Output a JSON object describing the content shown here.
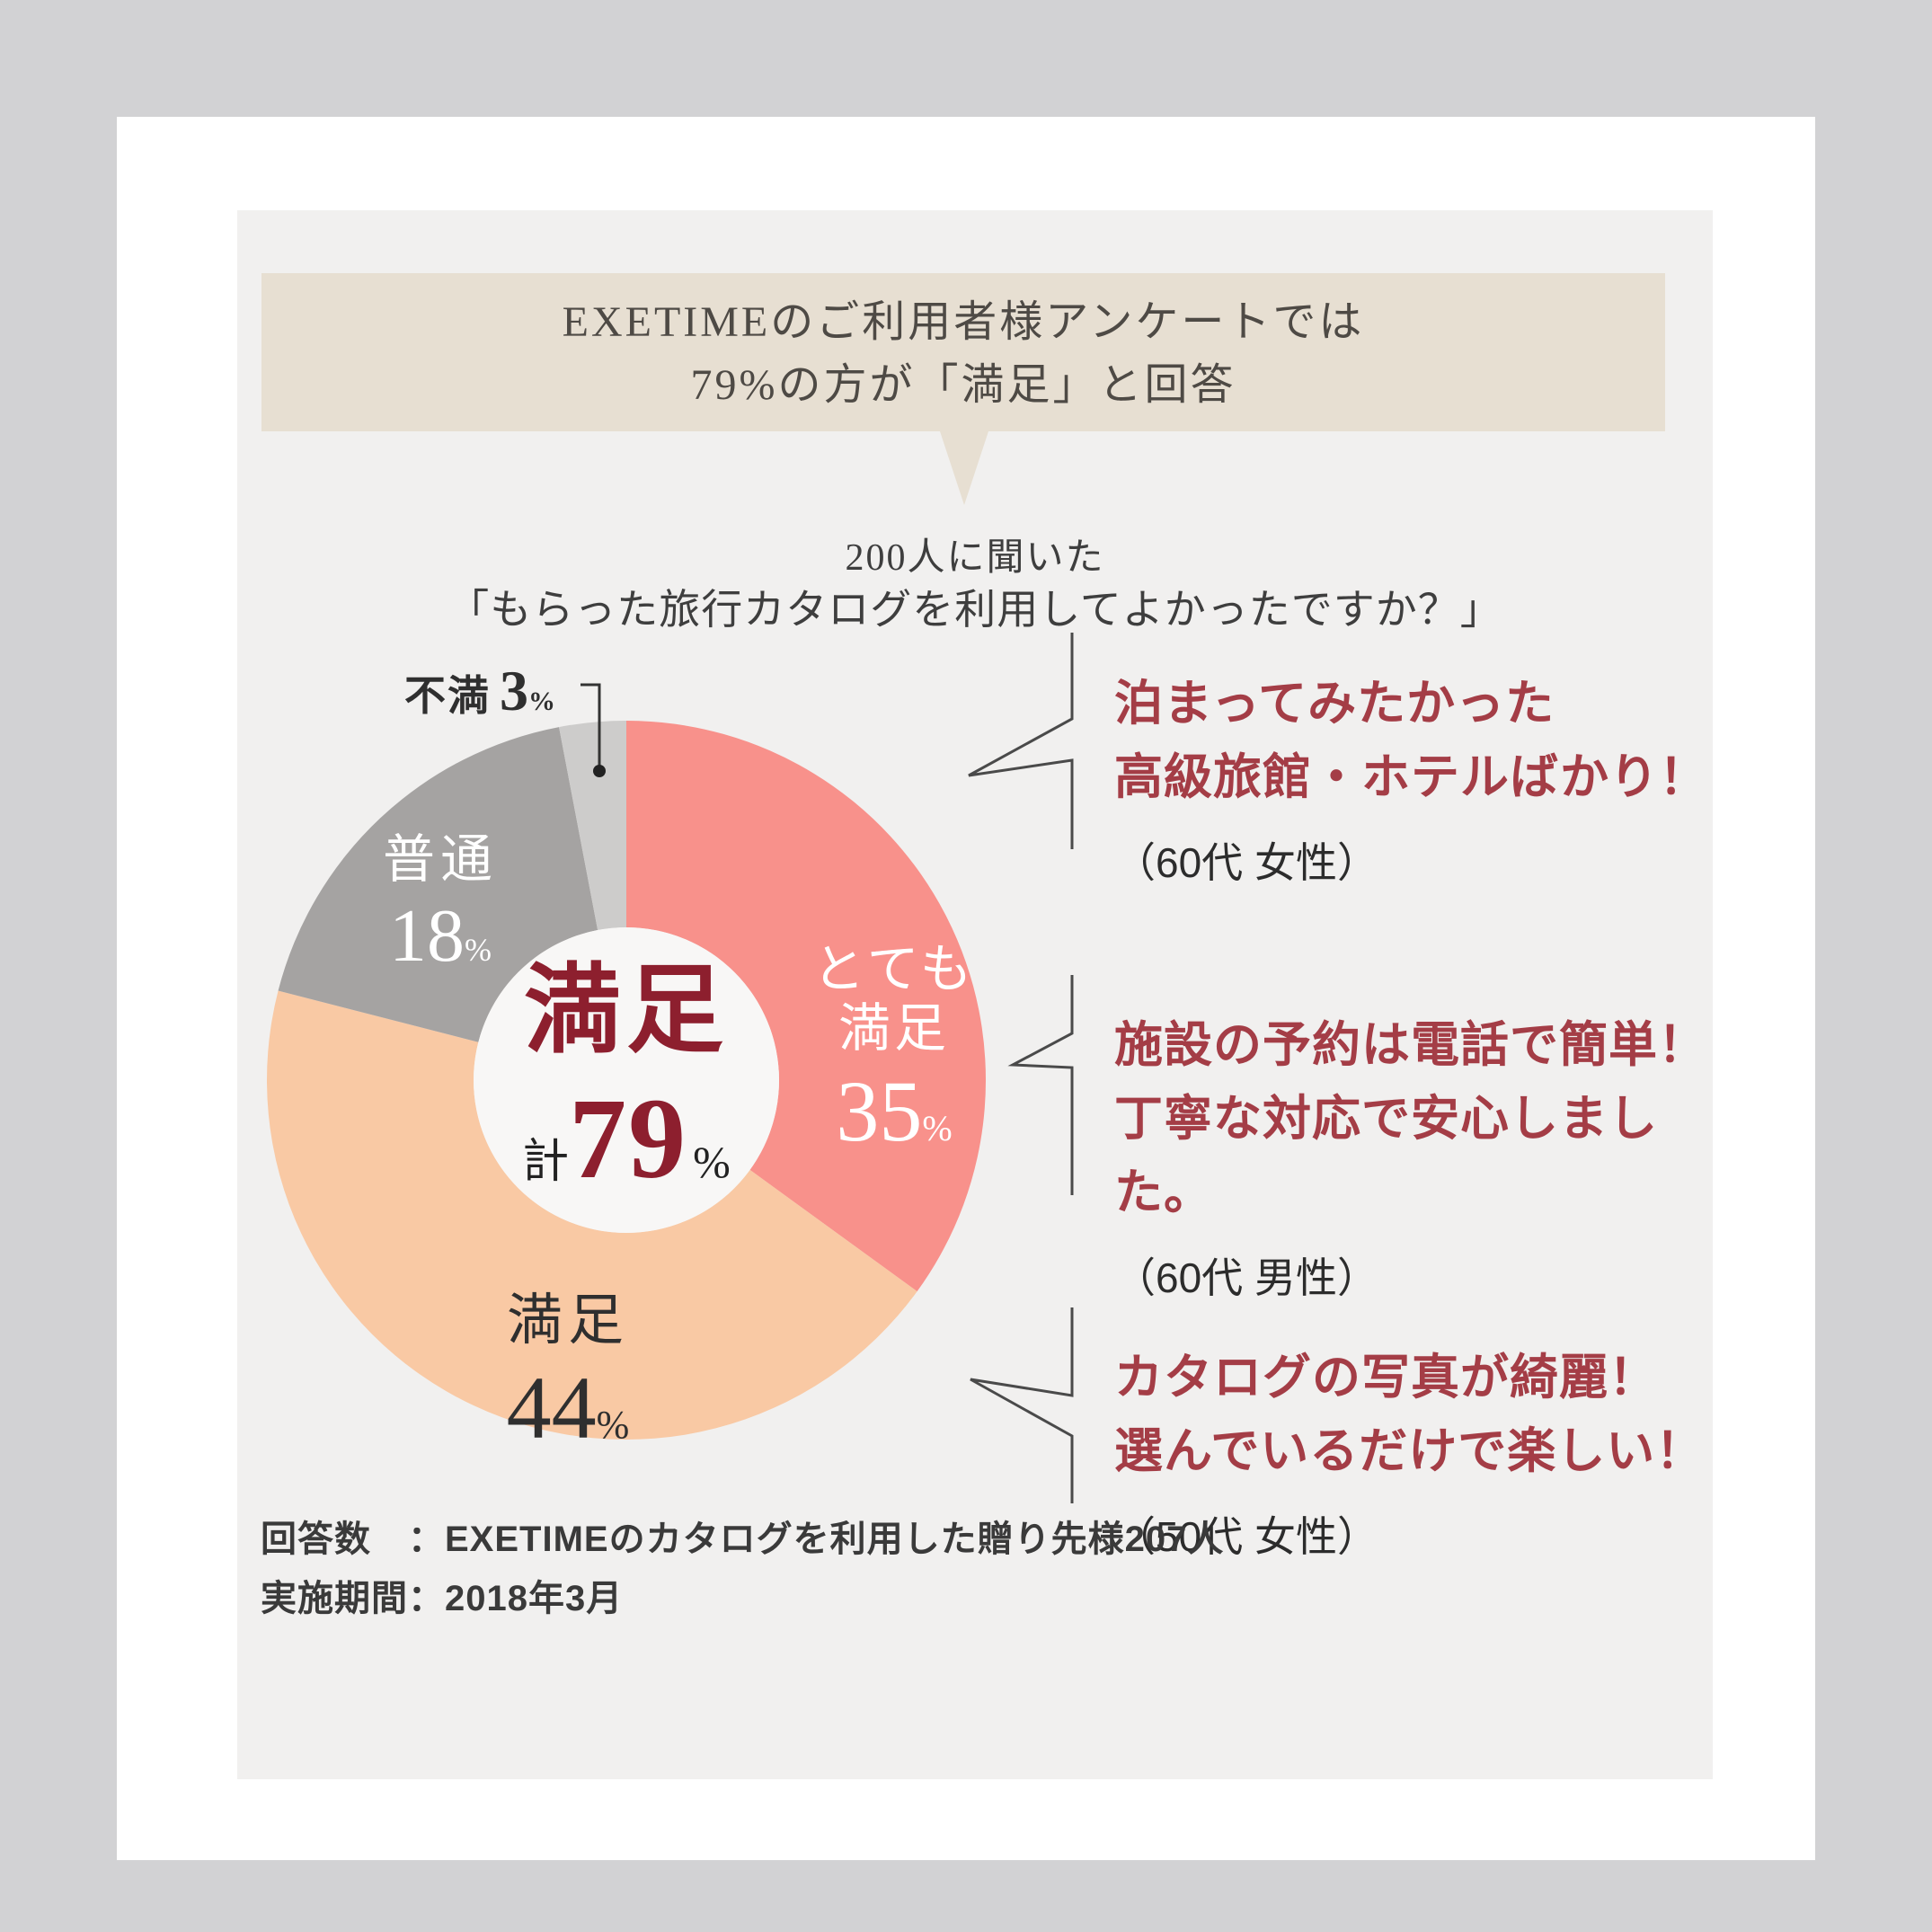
{
  "page": {
    "background": "#d2d2d4",
    "card_bg": "#ffffff",
    "panel_bg": "#f1f0ef"
  },
  "header": {
    "line1": "EXETIMEのご利用者様アンケートでは",
    "line2": "79%の方が「満足」と回答",
    "bg": "#e7dfd2",
    "text_color": "#4e4a45"
  },
  "subtitle": {
    "line1": "200人に聞いた",
    "line2": "「もらった旅行カタログを利用してよかったですか？」"
  },
  "chart_data": {
    "type": "pie",
    "donut": true,
    "title": "もらった旅行カタログを利用してよかったですか？",
    "sample_note": "200人に聞いた",
    "start_angle_deg": 0,
    "direction": "clockwise",
    "segments": [
      {
        "label": "とても満足",
        "label_lines": [
          "とても",
          "満足"
        ],
        "value": 35,
        "unit": "%",
        "color": "#f8918b",
        "label_color": "#ffffff"
      },
      {
        "label": "満足",
        "label_lines": [
          "満足"
        ],
        "value": 44,
        "unit": "%",
        "color": "#f9c9a4",
        "label_color": "#2f2f2f"
      },
      {
        "label": "普通",
        "label_lines": [
          "普通"
        ],
        "value": 18,
        "unit": "%",
        "color": "#a5a3a2",
        "label_color": "#ffffff"
      },
      {
        "label": "不満",
        "label_lines": [
          "不満"
        ],
        "value": 3,
        "unit": "%",
        "color": "#cdcccb",
        "label_color": "#2f2f2f"
      }
    ],
    "center": {
      "title": "満足",
      "prefix": "計",
      "value": "79",
      "unit": "%",
      "title_color": "#8d1f2e"
    },
    "hole_color": "#f8f7f6",
    "legend": "none",
    "grid": false
  },
  "testimonials": [
    {
      "line1": "泊まってみたかった",
      "line2": "高級旅館・ホテルばかり！",
      "attribution": "（60代 女性）"
    },
    {
      "line1": "施設の予約は電話で簡単！",
      "line2": "丁寧な対応で安心しました。",
      "attribution": "（60代 男性）"
    },
    {
      "line1": "カタログの写真が綺麗！",
      "line2": "選んでいるだけで楽しい！",
      "attribution": "（50代 女性）"
    }
  ],
  "footer": {
    "line1": "回答数　：EXETIMEのカタログを利用した贈り先様207人",
    "line2": "実施期間：2018年3月"
  },
  "colors": {
    "quote_red": "#a43d46",
    "maroon": "#8d1f2e",
    "bracket": "#4a4a4a",
    "leader": "#333333"
  }
}
